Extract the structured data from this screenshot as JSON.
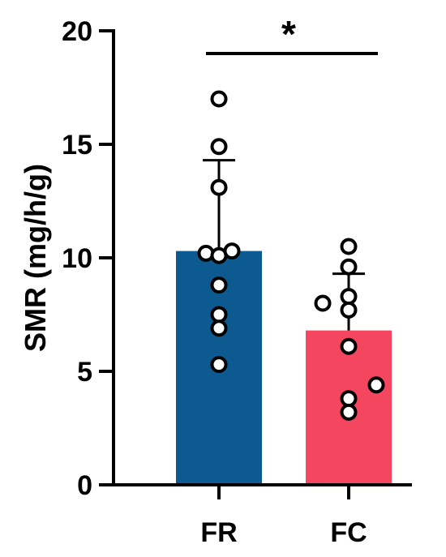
{
  "chart_data": {
    "type": "bar",
    "categories": [
      "FR",
      "FC"
    ],
    "values": [
      10.3,
      6.8
    ],
    "error_upper": [
      14.3,
      9.3
    ],
    "ylabel": "SMR (mg/h/g)",
    "ylim": [
      0,
      20
    ],
    "yticks": [
      "0",
      "5",
      "10",
      "15",
      "20"
    ],
    "colors": [
      "#0d5a91",
      "#f4465f"
    ],
    "points": [
      [
        17.0,
        14.9,
        13.1,
        10.2,
        10.1,
        10.3,
        8.8,
        7.5,
        6.9,
        5.3
      ],
      [
        10.5,
        9.6,
        8.3,
        8.0,
        7.7,
        6.1,
        4.4,
        3.8,
        3.2
      ]
    ],
    "significance": "*",
    "grid": false
  }
}
